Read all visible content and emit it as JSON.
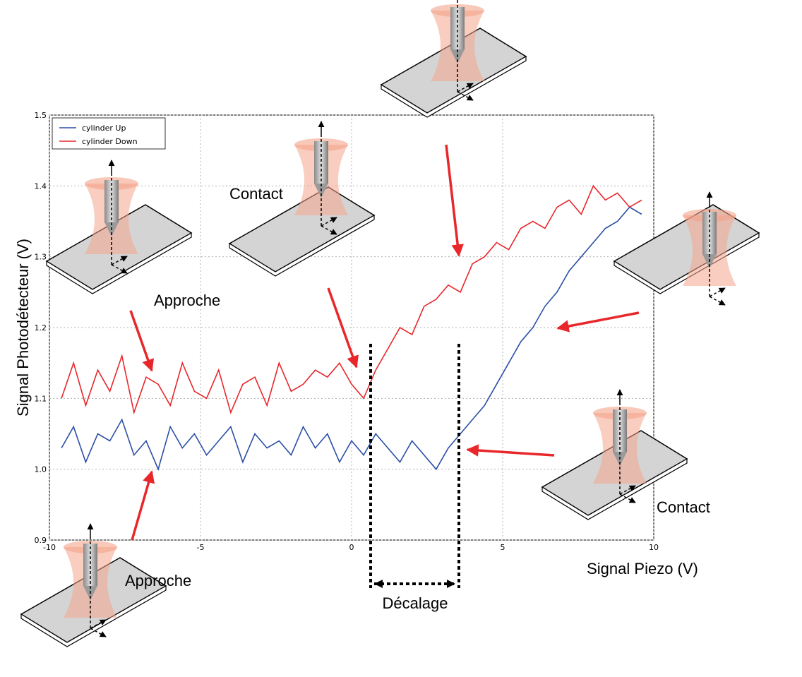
{
  "chart_data": {
    "type": "line",
    "x": [
      -9.6,
      -9.2,
      -8.8,
      -8.4,
      -8.0,
      -7.6,
      -7.2,
      -6.8,
      -6.4,
      -6.0,
      -5.6,
      -5.2,
      -4.8,
      -4.4,
      -4.0,
      -3.6,
      -3.2,
      -2.8,
      -2.4,
      -2.0,
      -1.6,
      -1.2,
      -0.8,
      -0.4,
      0.0,
      0.4,
      0.8,
      1.2,
      1.6,
      2.0,
      2.4,
      2.8,
      3.2,
      3.6,
      4.0,
      4.4,
      4.8,
      5.2,
      5.6,
      6.0,
      6.4,
      6.8,
      7.2,
      7.6,
      8.0,
      8.4,
      8.8,
      9.2,
      9.6
    ],
    "series": [
      {
        "name": "cylinder Up",
        "color": "#2b4fa6",
        "values": [
          1.03,
          1.06,
          1.01,
          1.05,
          1.04,
          1.07,
          1.02,
          1.04,
          1.0,
          1.06,
          1.03,
          1.05,
          1.02,
          1.04,
          1.06,
          1.01,
          1.05,
          1.03,
          1.04,
          1.02,
          1.06,
          1.03,
          1.05,
          1.01,
          1.04,
          1.02,
          1.05,
          1.03,
          1.01,
          1.04,
          1.02,
          1.0,
          1.03,
          1.05,
          1.07,
          1.09,
          1.12,
          1.15,
          1.18,
          1.2,
          1.23,
          1.25,
          1.28,
          1.3,
          1.32,
          1.34,
          1.35,
          1.37,
          1.36
        ]
      },
      {
        "name": "cylinder Down",
        "color": "#e8272b",
        "values": [
          1.1,
          1.15,
          1.09,
          1.14,
          1.11,
          1.16,
          1.08,
          1.13,
          1.12,
          1.09,
          1.15,
          1.11,
          1.1,
          1.14,
          1.08,
          1.12,
          1.13,
          1.09,
          1.15,
          1.11,
          1.12,
          1.14,
          1.13,
          1.15,
          1.12,
          1.1,
          1.14,
          1.17,
          1.2,
          1.19,
          1.23,
          1.24,
          1.26,
          1.25,
          1.29,
          1.3,
          1.32,
          1.31,
          1.34,
          1.35,
          1.34,
          1.37,
          1.38,
          1.36,
          1.4,
          1.38,
          1.39,
          1.37,
          1.38
        ]
      }
    ],
    "xlabel": "Signal Piezo (V)",
    "ylabel": "Signal Photodétecteur (V)",
    "xlim": [
      -10,
      10
    ],
    "xticks": [
      -10,
      -5,
      0,
      5,
      10
    ],
    "ylim": [
      0.9,
      1.5
    ],
    "yticks": [
      0.9,
      {
        "value": 1.0,
        "label": "1.0"
      },
      1.1,
      1.2,
      1.3,
      1.4,
      1.5
    ],
    "grid": true,
    "legend": "upper left",
    "annotations": [
      "Contact",
      "Approche",
      "Approche",
      "Contact",
      "Décalage"
    ]
  }
}
